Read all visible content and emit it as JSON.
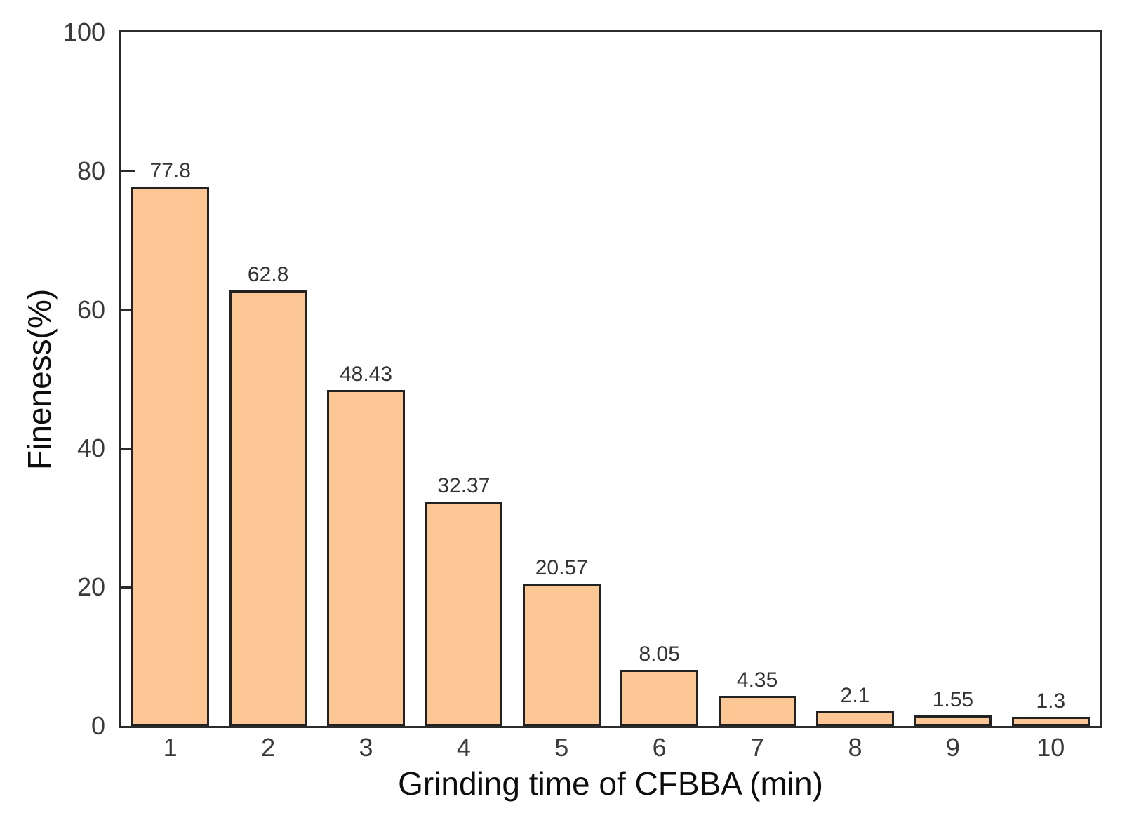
{
  "chart_data": {
    "type": "bar",
    "categories": [
      "1",
      "2",
      "3",
      "4",
      "5",
      "6",
      "7",
      "8",
      "9",
      "10"
    ],
    "values": [
      77.8,
      62.8,
      48.43,
      32.37,
      20.57,
      8.05,
      4.35,
      2.1,
      1.55,
      1.3
    ],
    "value_labels": [
      "77.8",
      "62.8",
      "48.43",
      "32.37",
      "20.57",
      "8.05",
      "4.35",
      "2.1",
      "1.55",
      "1.3"
    ],
    "title": "",
    "xlabel": "Grinding time of CFBBA (min)",
    "ylabel": "Fineness(%)",
    "ylim": [
      0,
      100
    ],
    "yticks": [
      0,
      20,
      40,
      60,
      80,
      100
    ],
    "grid": false,
    "legend_position": "none",
    "colors": {
      "bar_fill": "#FCC795",
      "bar_edge": "#222222",
      "axis_line": "#2b2b2b",
      "tick_text": "#3a3a3a",
      "title_text": "#0d0d0d",
      "background": "#ffffff"
    }
  }
}
